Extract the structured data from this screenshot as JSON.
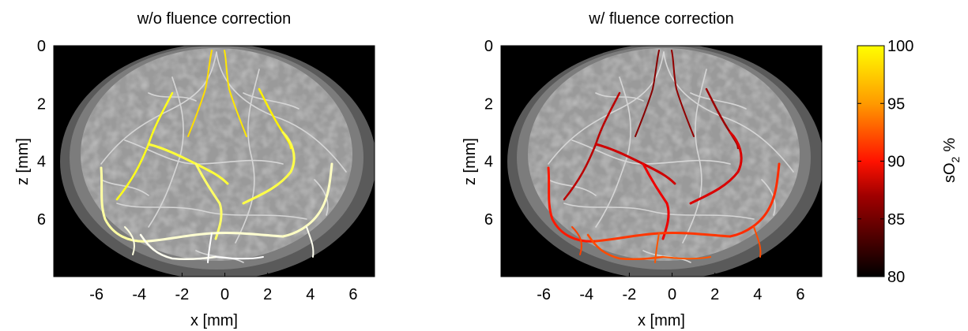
{
  "chart_data": [
    {
      "type": "heatmap",
      "title": "w/o fluence correction",
      "xlabel": "x [mm]",
      "ylabel": "z [mm]",
      "xlim": [
        -8,
        7
      ],
      "ylim": [
        8,
        0
      ],
      "x_ticks": [
        -6,
        -4,
        -2,
        0,
        2,
        4,
        6
      ],
      "y_ticks": [
        0,
        2,
        4,
        6
      ],
      "vessel_so2_range": [
        94,
        100
      ],
      "vessel_colormap": "hot",
      "background_colors": {
        "outside": "#000000",
        "outer_ring": "#5a5a5a",
        "middle_ring": "#7c7c7c",
        "tissue": "#9a9a9a",
        "vessels_gray": "#d6d6d6"
      }
    },
    {
      "type": "heatmap",
      "title": "w/ fluence correction",
      "xlabel": "x [mm]",
      "ylabel": "z [mm]",
      "xlim": [
        -8,
        7
      ],
      "ylim": [
        8,
        0
      ],
      "x_ticks": [
        -6,
        -4,
        -2,
        0,
        2,
        4,
        6
      ],
      "y_ticks": [
        0,
        2,
        4,
        6
      ],
      "vessel_so2_range": [
        84,
        90
      ],
      "vessel_colormap": "hot",
      "background_colors": {
        "outside": "#000000",
        "outer_ring": "#5a5a5a",
        "middle_ring": "#7c7c7c",
        "tissue": "#9a9a9a",
        "vessels_gray": "#d6d6d6"
      }
    }
  ],
  "colorbar": {
    "label_main": "sO",
    "label_sub": "2",
    "label_unit": "%",
    "min": 80,
    "max": 100,
    "ticks": [
      80,
      85,
      90,
      95,
      100
    ],
    "colormap": "hot"
  }
}
